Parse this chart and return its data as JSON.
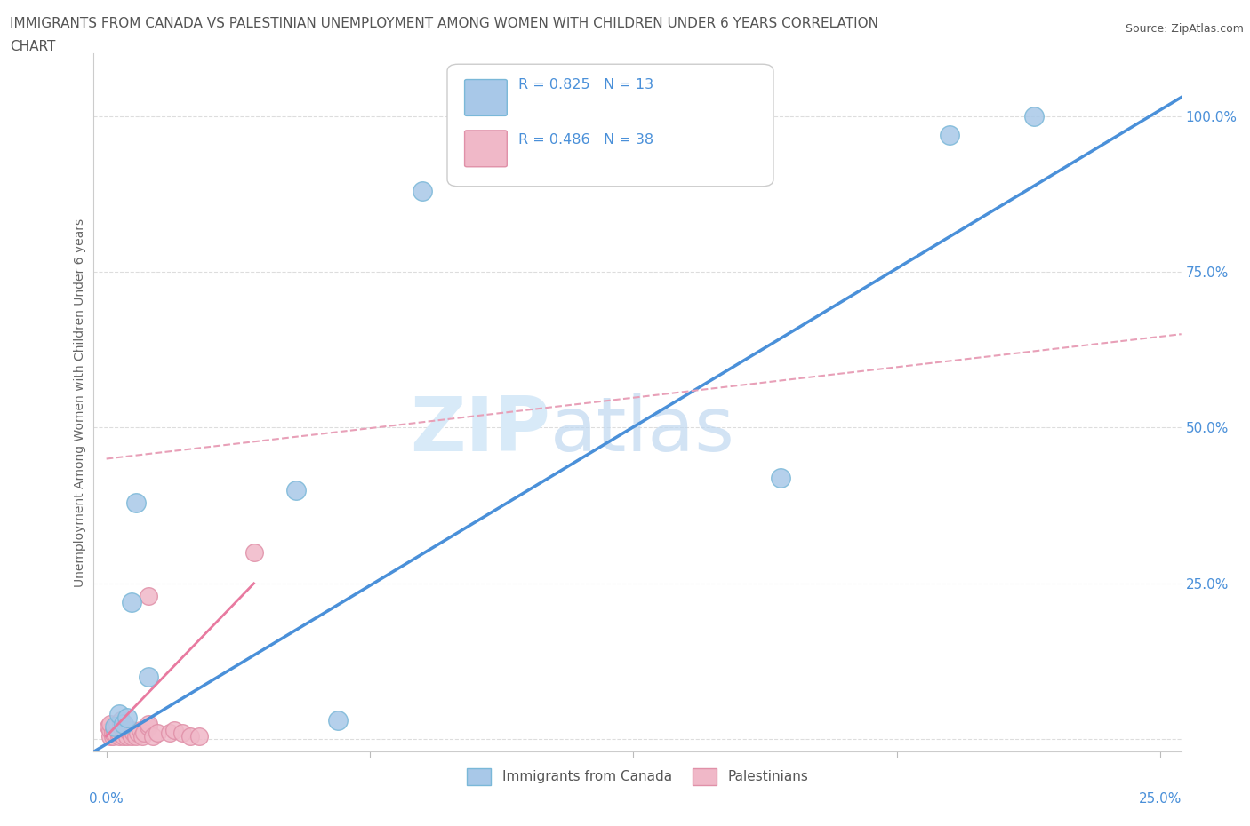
{
  "title_line1": "IMMIGRANTS FROM CANADA VS PALESTINIAN UNEMPLOYMENT AMONG WOMEN WITH CHILDREN UNDER 6 YEARS CORRELATION",
  "title_line2": "CHART",
  "source": "Source: ZipAtlas.com",
  "ylabel": "Unemployment Among Women with Children Under 6 years",
  "title_color": "#555555",
  "title_fontsize": 11,
  "canada_points_x": [
    0.2,
    0.3,
    0.4,
    0.5,
    0.6,
    0.7,
    1.0,
    4.5,
    5.5,
    7.5,
    16.0,
    20.0,
    22.0
  ],
  "canada_points_y": [
    2.0,
    4.0,
    2.5,
    3.5,
    22.0,
    38.0,
    10.0,
    40.0,
    3.0,
    88.0,
    42.0,
    97.0,
    100.0
  ],
  "canada_color": "#a8c8e8",
  "canada_edge_color": "#7ab8d8",
  "canada_R": 0.825,
  "canada_N": 13,
  "palest_points_x": [
    0.05,
    0.1,
    0.1,
    0.1,
    0.15,
    0.15,
    0.2,
    0.2,
    0.25,
    0.25,
    0.3,
    0.3,
    0.35,
    0.35,
    0.4,
    0.45,
    0.5,
    0.5,
    0.55,
    0.6,
    0.6,
    0.65,
    0.7,
    0.75,
    0.8,
    0.85,
    0.9,
    1.0,
    1.0,
    1.0,
    1.1,
    1.2,
    1.5,
    1.6,
    1.8,
    2.0,
    2.2,
    3.5
  ],
  "palest_points_y": [
    2.0,
    0.5,
    1.5,
    2.5,
    0.5,
    1.0,
    1.0,
    2.0,
    1.5,
    2.5,
    0.5,
    1.0,
    2.0,
    3.0,
    0.5,
    1.5,
    0.5,
    1.5,
    1.0,
    0.5,
    1.5,
    1.0,
    0.5,
    1.0,
    1.5,
    0.5,
    1.0,
    2.0,
    2.5,
    23.0,
    0.5,
    1.0,
    1.0,
    1.5,
    1.0,
    0.5,
    0.5,
    30.0
  ],
  "palest_color": "#f0b8c8",
  "palest_edge_color": "#e090a8",
  "palest_R": 0.486,
  "palest_N": 38,
  "xmin": -0.3,
  "xmax": 25.5,
  "ymin": -2.0,
  "ymax": 110.0,
  "yticks": [
    0.0,
    25.0,
    50.0,
    75.0,
    100.0
  ],
  "ytick_labels": [
    "",
    "25.0%",
    "50.0%",
    "75.0%",
    "100.0%"
  ],
  "xticks": [
    0.0,
    6.25,
    12.5,
    18.75,
    25.0
  ],
  "blue_line_x0": -0.3,
  "blue_line_x1": 25.5,
  "blue_line_y0": -2.0,
  "blue_line_y1": 103.0,
  "pink_dash_x0": 0.0,
  "pink_dash_x1": 25.5,
  "pink_dash_y0": 45.0,
  "pink_dash_y1": 65.0,
  "pink_solid_x0": 0.0,
  "pink_solid_x1": 3.5,
  "pink_solid_y0": 0.5,
  "pink_solid_y1": 25.0,
  "blue_line_color": "#4a90d9",
  "pink_solid_color": "#e87aa0",
  "pink_dash_color": "#e8a0b8",
  "grid_color": "#dddddd",
  "background_color": "#ffffff",
  "legend_canada_label": "Immigrants from Canada",
  "legend_palest_label": "Palestinians"
}
